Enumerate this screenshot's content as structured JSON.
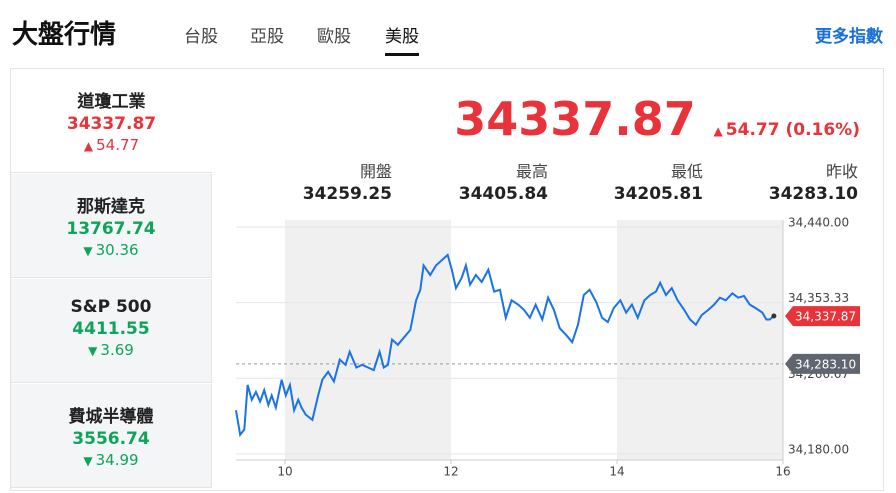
{
  "header": {
    "title": "大盤行情",
    "tabs": [
      "台股",
      "亞股",
      "歐股",
      "美股"
    ],
    "active_tab": 3,
    "link": "更多指數"
  },
  "indices": [
    {
      "name": "道瓊工業",
      "value": "34337.87",
      "change": "54.77",
      "direction": "up"
    },
    {
      "name": "那斯達克",
      "value": "13767.74",
      "change": "30.36",
      "direction": "down"
    },
    {
      "name": "S&P 500",
      "value": "4411.55",
      "change": "3.69",
      "direction": "down"
    },
    {
      "name": "費城半導體",
      "value": "3556.74",
      "change": "34.99",
      "direction": "down"
    }
  ],
  "active_index": 0,
  "quote": {
    "value": "34337.87",
    "change": "54.77 (0.16%)",
    "direction": "up",
    "stats": [
      {
        "label": "開盤",
        "value": "34259.25"
      },
      {
        "label": "最高",
        "value": "34405.84"
      },
      {
        "label": "最低",
        "value": "34205.81"
      },
      {
        "label": "昨收",
        "value": "34283.10"
      }
    ]
  },
  "chart_data": {
    "type": "line",
    "color": "#1a73e8",
    "x": [
      9.41,
      9.46,
      9.51,
      9.55,
      9.6,
      9.65,
      9.7,
      9.75,
      9.8,
      9.84,
      9.89,
      9.96,
      10.01,
      10.06,
      10.11,
      10.16,
      10.2,
      10.25,
      10.33,
      10.4,
      10.45,
      10.52,
      10.59,
      10.66,
      10.73,
      10.78,
      10.86,
      10.93,
      11.0,
      11.07,
      11.14,
      11.19,
      11.24,
      11.29,
      11.36,
      11.43,
      11.51,
      11.58,
      11.63,
      11.67,
      11.75,
      11.82,
      11.89,
      11.96,
      12.01,
      12.06,
      12.13,
      12.18,
      12.23,
      12.3,
      12.37,
      12.45,
      12.52,
      12.59,
      12.66,
      12.73,
      12.81,
      12.88,
      12.95,
      13.02,
      13.1,
      13.17,
      13.24,
      13.31,
      13.39,
      13.46,
      13.53,
      13.6,
      13.67,
      13.75,
      13.82,
      13.89,
      13.96,
      14.04,
      14.11,
      14.18,
      14.25,
      14.33,
      14.4,
      14.47,
      14.52,
      14.59,
      14.66,
      14.73,
      14.81,
      14.88,
      14.95,
      15.02,
      15.1,
      15.17,
      15.24,
      15.31,
      15.39,
      15.46,
      15.53,
      15.6,
      15.67,
      15.75,
      15.8,
      15.84,
      15.89
    ],
    "values": [
      34230,
      34202,
      34208,
      34259,
      34242,
      34251,
      34240,
      34253,
      34236,
      34247,
      34233,
      34265,
      34247,
      34259,
      34230,
      34242,
      34233,
      34225,
      34219,
      34247,
      34265,
      34274,
      34263,
      34288,
      34282,
      34297,
      34279,
      34282,
      34279,
      34276,
      34297,
      34279,
      34282,
      34311,
      34305,
      34313,
      34322,
      34356,
      34368,
      34396,
      34385,
      34396,
      34402,
      34408,
      34391,
      34370,
      34382,
      34396,
      34374,
      34385,
      34377,
      34391,
      34366,
      34368,
      34336,
      34356,
      34351,
      34345,
      34336,
      34351,
      34334,
      34359,
      34345,
      34324,
      34316,
      34308,
      34328,
      34362,
      34368,
      34354,
      34336,
      34331,
      34347,
      34356,
      34342,
      34351,
      34336,
      34356,
      34362,
      34366,
      34376,
      34362,
      34370,
      34356,
      34345,
      34334,
      34328,
      34339,
      34345,
      34351,
      34359,
      34356,
      34364,
      34359,
      34361,
      34351,
      34347,
      34342,
      34334,
      34334,
      34338
    ],
    "xlim": [
      9.41,
      16
    ],
    "ylim": [
      34173,
      34448
    ],
    "xticks": [
      10,
      12,
      14,
      16
    ],
    "yticks": [
      {
        "value": 34180,
        "label": "34,180.00"
      },
      {
        "value": 34266.67,
        "label": "34,266.67"
      },
      {
        "value": 34353.33,
        "label": "34,353.33"
      },
      {
        "value": 34440,
        "label": "34,440.00"
      }
    ],
    "grid": true,
    "reference_line": {
      "value": 34283.1,
      "label": "34,283.10",
      "color": "#5f6670"
    },
    "last_label": {
      "value": 34337.87,
      "label": "34,337.87",
      "color": "#e8333a"
    }
  }
}
